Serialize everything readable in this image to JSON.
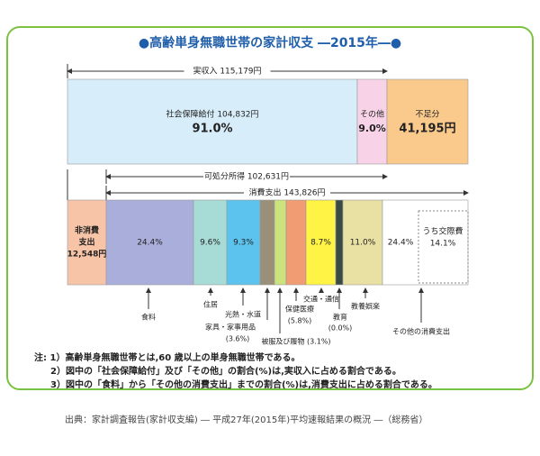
{
  "title": "●高齢単身無職世帯の家計収支 ―2015年―●",
  "income": "実収入 115,179円",
  "disposable": "可処分所得 102,631円",
  "consumption": "消費支出 143,826円",
  "top_segments": [
    {
      "lines": [
        "社会保障給付 104,832円",
        "91.0%"
      ]
    },
    {
      "lines": [
        "その他",
        "9.0%"
      ]
    },
    {
      "lines": [
        "不足分",
        "41,195円"
      ]
    }
  ],
  "bottom_segments": [
    {
      "lines": [
        "非消費",
        "支出",
        "12,548円"
      ]
    },
    {
      "lines": [
        "24.4%"
      ]
    },
    {
      "lines": [
        "9.6%"
      ]
    },
    {
      "lines": [
        "9.3%"
      ]
    },
    {
      "lines": [
        "8.7%"
      ]
    },
    {
      "lines": [
        "11.0%"
      ]
    },
    {
      "lines": [
        "24.4%"
      ]
    }
  ],
  "inner": {
    "lines": [
      "うち交際費",
      "14.1%"
    ]
  },
  "callouts": [
    {
      "lines": [
        "食料"
      ]
    },
    {
      "lines": [
        "住居"
      ]
    },
    {
      "lines": [
        "光熱・水道"
      ]
    },
    {
      "lines": [
        "家具・家事用品",
        "(3.6%)"
      ]
    },
    {
      "lines": [
        "被服及び履物 (3.1%)"
      ]
    },
    {
      "lines": [
        "保健医療",
        "(5.8%)"
      ]
    },
    {
      "lines": [
        "交通・通信"
      ]
    },
    {
      "lines": [
        "教育",
        "(0.0%)"
      ]
    },
    {
      "lines": [
        "教養娯楽"
      ]
    },
    {
      "lines": [
        "その他の消費支出"
      ]
    }
  ],
  "notes": [
    "注: 1）高齢単身無職世帯とは,60 歳以上の単身無職世帯である。",
    "2）図中の「社会保障給付」及び「その他」の割合(%)は,実収入に占める割合である。",
    "3）図中の「食料」から「その他の消費支出」までの割合(%)は,消費支出に占める割合である。"
  ],
  "source": "出典：家計調査報告(家計収支編) ― 平成27年(2015年)平均速報結果の概況 ―（総務省）"
}
